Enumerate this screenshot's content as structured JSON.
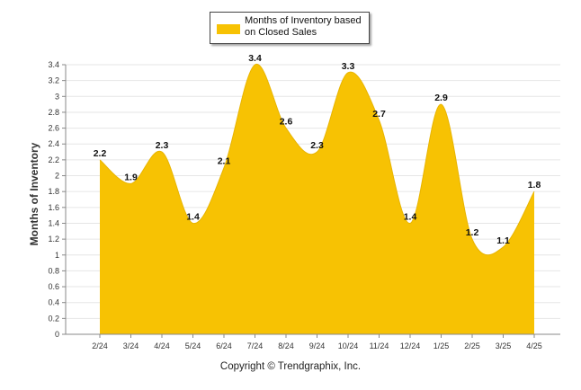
{
  "chart_data": {
    "type": "area",
    "categories": [
      "2/24",
      "3/24",
      "4/24",
      "5/24",
      "6/24",
      "7/24",
      "8/24",
      "9/24",
      "10/24",
      "11/24",
      "12/24",
      "1/25",
      "2/25",
      "3/25",
      "4/25"
    ],
    "series": [
      {
        "name": "Months of Inventory based on Closed Sales",
        "values": [
          2.2,
          1.9,
          2.3,
          1.4,
          2.1,
          3.4,
          2.6,
          2.3,
          3.3,
          2.7,
          1.4,
          2.9,
          1.2,
          1.1,
          1.8
        ]
      }
    ],
    "ylabel": "Months of Inventory",
    "xlabel": "",
    "ylim": [
      0,
      3.4
    ],
    "yticks": [
      0,
      0.2,
      0.4,
      0.6,
      0.8,
      1,
      1.2,
      1.4,
      1.6,
      1.8,
      2,
      2.2,
      2.4,
      2.6,
      2.8,
      3,
      3.2,
      3.4
    ],
    "grid": true,
    "legend": "top-center",
    "fill_color": "#F7C203"
  },
  "legend": {
    "label_line1": "Months of Inventory based",
    "label_line2": "on Closed Sales"
  },
  "footer": {
    "copyright": "Copyright © Trendgraphix, Inc."
  },
  "axis": {
    "ylabel": "Months of Inventory"
  }
}
